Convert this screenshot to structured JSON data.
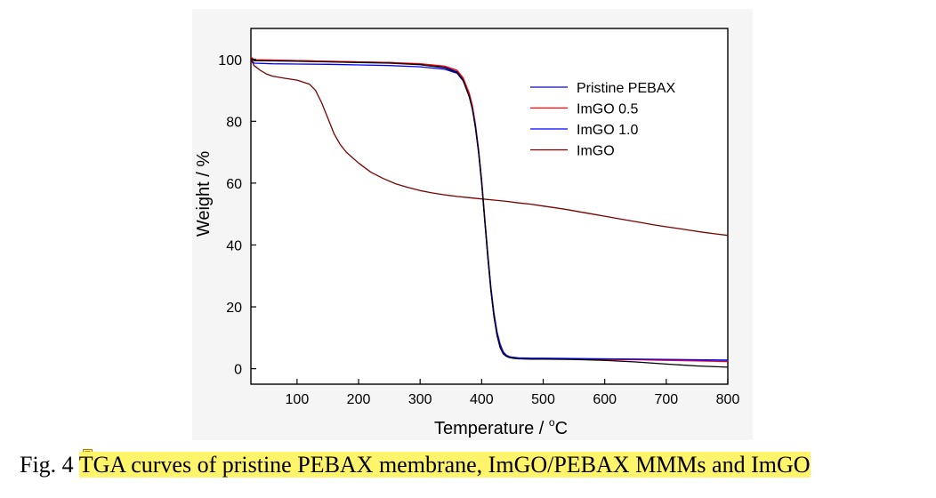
{
  "figure": {
    "caption_prefix": "Fig. 4 ",
    "caption_highlighted": "TGA curves of pristine PEBAX membrane, ImGO/PEBAX MMMs and ImGO",
    "highlight_color": "#fff46a",
    "annotation_icon": "comment-note-icon"
  },
  "chart_data": {
    "type": "line",
    "xlabel": "Temperature / °C",
    "xlabel_parts": [
      "Temperature / ",
      "o",
      "C"
    ],
    "ylabel": "Weight / %",
    "xlim": [
      25,
      800
    ],
    "ylim": [
      -5,
      110
    ],
    "xticks": [
      100,
      200,
      300,
      400,
      500,
      600,
      700,
      800
    ],
    "yticks": [
      0,
      20,
      40,
      60,
      80,
      100
    ],
    "grid": false,
    "legend_position": "top-right",
    "series": [
      {
        "name": "Pristine PEBAX",
        "color": "#0000ff",
        "x": [
          25,
          30,
          60,
          100,
          150,
          200,
          250,
          300,
          340,
          360,
          370,
          380,
          385,
          390,
          395,
          400,
          405,
          410,
          415,
          420,
          425,
          430,
          435,
          440,
          445,
          450,
          460,
          480,
          500,
          550,
          600,
          650,
          700,
          750,
          800
        ],
        "y": [
          100.5,
          99.8,
          99.7,
          99.6,
          99.4,
          99.2,
          99.0,
          98.5,
          97.5,
          96.0,
          93.5,
          88.0,
          84.0,
          78.0,
          70.0,
          60.0,
          48.0,
          36.0,
          25.5,
          17.0,
          11.0,
          7.0,
          5.0,
          4.2,
          3.8,
          3.6,
          3.4,
          3.3,
          3.3,
          3.2,
          3.1,
          3.0,
          2.9,
          2.8,
          2.7
        ]
      },
      {
        "name": "ImGO 0.5",
        "color": "#ff0000",
        "x": [
          25,
          30,
          60,
          100,
          150,
          200,
          250,
          300,
          340,
          360,
          370,
          380,
          385,
          390,
          395,
          400,
          405,
          410,
          415,
          420,
          425,
          430,
          435,
          440,
          445,
          450,
          460,
          480,
          500,
          550,
          600,
          650,
          700,
          750,
          800
        ],
        "y": [
          100.8,
          99.9,
          99.8,
          99.6,
          99.4,
          99.2,
          99.0,
          98.6,
          97.8,
          96.5,
          94.0,
          89.0,
          85.0,
          79.0,
          71.0,
          61.0,
          49.0,
          37.0,
          26.0,
          17.0,
          11.0,
          7.0,
          5.0,
          4.1,
          3.7,
          3.5,
          3.3,
          3.2,
          3.2,
          3.1,
          3.0,
          2.9,
          2.7,
          2.5,
          2.3
        ]
      },
      {
        "name": "ImGO 1.0",
        "color": "#0000ff",
        "x": [
          25,
          30,
          60,
          100,
          150,
          200,
          250,
          300,
          340,
          360,
          370,
          380,
          385,
          390,
          395,
          400,
          405,
          410,
          415,
          420,
          425,
          430,
          435,
          440,
          445,
          450,
          460,
          480,
          500,
          550,
          600,
          650,
          700,
          750,
          800
        ],
        "y": [
          100.0,
          98.8,
          98.6,
          98.5,
          98.4,
          98.2,
          98.0,
          97.6,
          96.8,
          95.5,
          93.0,
          88.0,
          84.0,
          78.5,
          70.5,
          60.5,
          48.5,
          37.0,
          26.5,
          18.0,
          12.0,
          8.0,
          5.5,
          4.4,
          3.9,
          3.7,
          3.5,
          3.4,
          3.4,
          3.3,
          3.2,
          3.1,
          3.0,
          2.9,
          2.8
        ]
      },
      {
        "name": "ImGO",
        "color": "#7a0000",
        "x": [
          25,
          30,
          40,
          50,
          60,
          80,
          100,
          120,
          130,
          140,
          150,
          160,
          170,
          180,
          200,
          220,
          240,
          260,
          280,
          300,
          320,
          340,
          360,
          380,
          400,
          420,
          440,
          460,
          480,
          500,
          520,
          540,
          560,
          580,
          600,
          620,
          640,
          660,
          680,
          700,
          720,
          740,
          760,
          780,
          800
        ],
        "y": [
          100.0,
          98.0,
          96.5,
          95.3,
          94.6,
          93.9,
          93.3,
          92.0,
          90.0,
          86.0,
          81.0,
          76.0,
          72.5,
          70.0,
          66.5,
          63.5,
          61.5,
          59.8,
          58.6,
          57.6,
          56.8,
          56.2,
          55.7,
          55.3,
          54.9,
          54.5,
          54.1,
          53.6,
          53.2,
          52.6,
          52.0,
          51.4,
          50.7,
          50.0,
          49.3,
          48.6,
          47.9,
          47.2,
          46.5,
          45.9,
          45.3,
          44.7,
          44.1,
          43.6,
          43.1
        ]
      },
      {
        "name": "",
        "color": "#000000",
        "x": [
          25,
          30,
          60,
          100,
          150,
          200,
          250,
          300,
          340,
          360,
          370,
          380,
          385,
          390,
          395,
          400,
          405,
          410,
          415,
          420,
          425,
          430,
          435,
          440,
          445,
          450,
          460,
          480,
          500,
          550,
          600,
          650,
          700,
          750,
          800
        ],
        "y": [
          100.3,
          99.6,
          99.5,
          99.4,
          99.2,
          99.0,
          98.8,
          98.3,
          97.3,
          95.8,
          93.2,
          87.8,
          83.8,
          77.8,
          69.8,
          59.8,
          47.8,
          35.8,
          25.3,
          16.8,
          10.8,
          6.8,
          4.8,
          4.0,
          3.6,
          3.4,
          3.2,
          3.1,
          3.1,
          3.0,
          2.7,
          2.2,
          1.5,
          0.9,
          0.5
        ]
      }
    ]
  }
}
